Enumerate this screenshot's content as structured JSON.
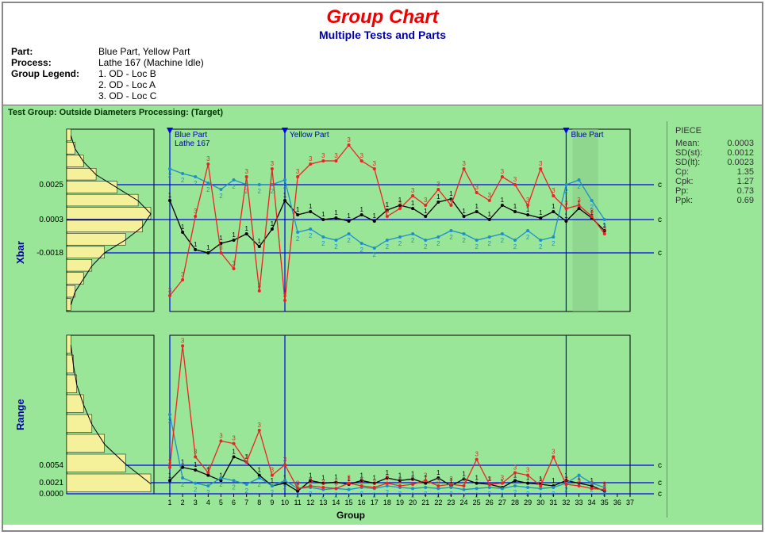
{
  "header": {
    "title": "Group Chart",
    "subtitle": "Multiple Tests and Parts"
  },
  "info": {
    "part_label": "Part:",
    "part_value": "Blue Part, Yellow Part",
    "process_label": "Process:",
    "process_value": "Lathe 167 (Machine Idle)",
    "legend_label": "Group Legend:",
    "legend_items": [
      "1. OD - Loc B",
      "2. OD - Loc A",
      "3. OD - Loc C"
    ]
  },
  "test_group_label": "Test Group: Outside Diameters Processing:  (Target)",
  "stats": {
    "title": "PIECE",
    "rows": [
      {
        "label": "Mean:",
        "value": "0.0003"
      },
      {
        "label": "SD(st):",
        "value": "0.0012"
      },
      {
        "label": "SD(lt):",
        "value": "0.0023"
      },
      {
        "label": "Cp:",
        "value": "1.35"
      },
      {
        "label": "Cpk:",
        "value": "1.27"
      },
      {
        "label": "Pp:",
        "value": "0.73"
      },
      {
        "label": "Ppk:",
        "value": "0.69"
      }
    ]
  },
  "colors": {
    "bg": "#99e699",
    "axis": "#000000",
    "control_line": "#0000ee",
    "series1": "#000000",
    "series2": "#1e90c8",
    "series3": "#ee2222",
    "hist_fill": "#f5f09a",
    "hist_stroke": "#000000",
    "curve": "#000000",
    "highlight": "#88cc88",
    "marker_label": "#0000aa"
  },
  "xbar_chart": {
    "ylabel": "Xbar",
    "yticks": [
      {
        "v": 0.0025,
        "label": "0.0025"
      },
      {
        "v": 0.0003,
        "label": "0.0003"
      },
      {
        "v": -0.0018,
        "label": "-0.0018"
      }
    ],
    "ymin": -0.0055,
    "ymax": 0.006,
    "control_lines": [
      {
        "v": 0.0025,
        "label": "cUCL"
      },
      {
        "v": 0.0003,
        "label": "cCL"
      },
      {
        "v": -0.0018,
        "label": "cLCL"
      }
    ],
    "markers": [
      {
        "x": 1,
        "labels": [
          "Blue Part",
          "Lathe 167"
        ]
      },
      {
        "x": 10,
        "labels": [
          "Yellow Part"
        ]
      },
      {
        "x": 32,
        "labels": [
          "Blue Part"
        ]
      }
    ],
    "highlight_x": [
      33,
      34
    ],
    "histogram": [
      0.05,
      0.1,
      0.2,
      0.3,
      0.45,
      0.7,
      0.9,
      1.0,
      0.85,
      0.6,
      0.35,
      0.2,
      0.1,
      0.05
    ],
    "series": {
      "s1": [
        0.0015,
        -0.0005,
        -0.0016,
        -0.0018,
        -0.0012,
        -0.001,
        -0.0006,
        -0.0014,
        -0.0003,
        0.0015,
        0.0006,
        0.0008,
        0.0003,
        0.0004,
        0.0002,
        0.0006,
        0.0002,
        0.0009,
        0.0012,
        0.001,
        0.0005,
        0.0014,
        0.0016,
        0.0005,
        0.0008,
        0.0003,
        0.0012,
        0.0008,
        0.0006,
        0.0004,
        0.0008,
        0.0002,
        0.001,
        0.0004,
        -0.0004
      ],
      "s2": [
        0.0035,
        0.0032,
        0.003,
        0.0026,
        0.0022,
        0.0028,
        0.0025,
        0.0025,
        0.0025,
        0.0028,
        -0.0005,
        -0.0003,
        -0.0008,
        -0.001,
        -0.0006,
        -0.0012,
        -0.0015,
        -0.001,
        -0.0008,
        -0.0006,
        -0.001,
        -0.0008,
        -0.0004,
        -0.0006,
        -0.001,
        -0.0008,
        -0.0006,
        -0.001,
        -0.0004,
        -0.001,
        -0.0008,
        0.0025,
        0.0028,
        0.0015,
        0.0003
      ],
      "s3": [
        -0.0045,
        -0.0035,
        0.0005,
        0.0038,
        -0.0018,
        -0.0028,
        0.003,
        -0.0042,
        0.0035,
        -0.0048,
        0.003,
        0.0038,
        0.004,
        0.004,
        0.005,
        0.004,
        0.0035,
        0.0005,
        0.001,
        0.0018,
        0.0012,
        0.0022,
        0.0012,
        0.0035,
        0.002,
        0.0015,
        0.003,
        0.0025,
        0.0012,
        0.0035,
        0.0018,
        0.001,
        0.0012,
        0.0005,
        -0.0006
      ]
    }
  },
  "range_chart": {
    "ylabel": "Range",
    "yticks": [
      {
        "v": 0.0054,
        "label": "0.0054"
      },
      {
        "v": 0.0021,
        "label": "0.0021"
      },
      {
        "v": 0.0,
        "label": "0.0000"
      }
    ],
    "ymin": 0.0,
    "ymax": 0.03,
    "control_lines": [
      {
        "v": 0.0054,
        "label": "cUCL"
      },
      {
        "v": 0.0021,
        "label": "cCL"
      },
      {
        "v": 0.0,
        "label": "cLCL"
      }
    ],
    "histogram": [
      1.0,
      0.7,
      0.45,
      0.3,
      0.2,
      0.12,
      0.08,
      0.05
    ],
    "xlabel": "Group",
    "n_groups": 37,
    "series": {
      "s1": [
        0.0025,
        0.005,
        0.0045,
        0.0035,
        0.0025,
        0.007,
        0.006,
        0.0035,
        0.0015,
        0.002,
        0.0005,
        0.0025,
        0.002,
        0.0022,
        0.0018,
        0.0025,
        0.002,
        0.003,
        0.0025,
        0.0028,
        0.002,
        0.003,
        0.0015,
        0.0028,
        0.002,
        0.0018,
        0.0012,
        0.0025,
        0.002,
        0.0018,
        0.0015,
        0.0025,
        0.002,
        0.0015,
        0.0005
      ],
      "s2": [
        0.015,
        0.003,
        0.002,
        0.0015,
        0.003,
        0.0025,
        0.0018,
        0.003,
        0.0015,
        0.0025,
        0.001,
        0.0012,
        0.0008,
        0.001,
        0.0008,
        0.0012,
        0.001,
        0.0015,
        0.0012,
        0.001,
        0.0012,
        0.001,
        0.0012,
        0.0008,
        0.001,
        0.0012,
        0.001,
        0.0015,
        0.0012,
        0.001,
        0.0012,
        0.002,
        0.0035,
        0.002,
        0.0012
      ],
      "s3": [
        0.005,
        0.028,
        0.007,
        0.004,
        0.01,
        0.0095,
        0.006,
        0.012,
        0.0035,
        0.0055,
        0.001,
        0.0015,
        0.0012,
        0.001,
        0.002,
        0.0015,
        0.0012,
        0.002,
        0.0015,
        0.0018,
        0.0025,
        0.0015,
        0.0018,
        0.0015,
        0.0065,
        0.0018,
        0.002,
        0.004,
        0.0035,
        0.0015,
        0.007,
        0.0018,
        0.0015,
        0.001,
        0.0008
      ]
    }
  }
}
